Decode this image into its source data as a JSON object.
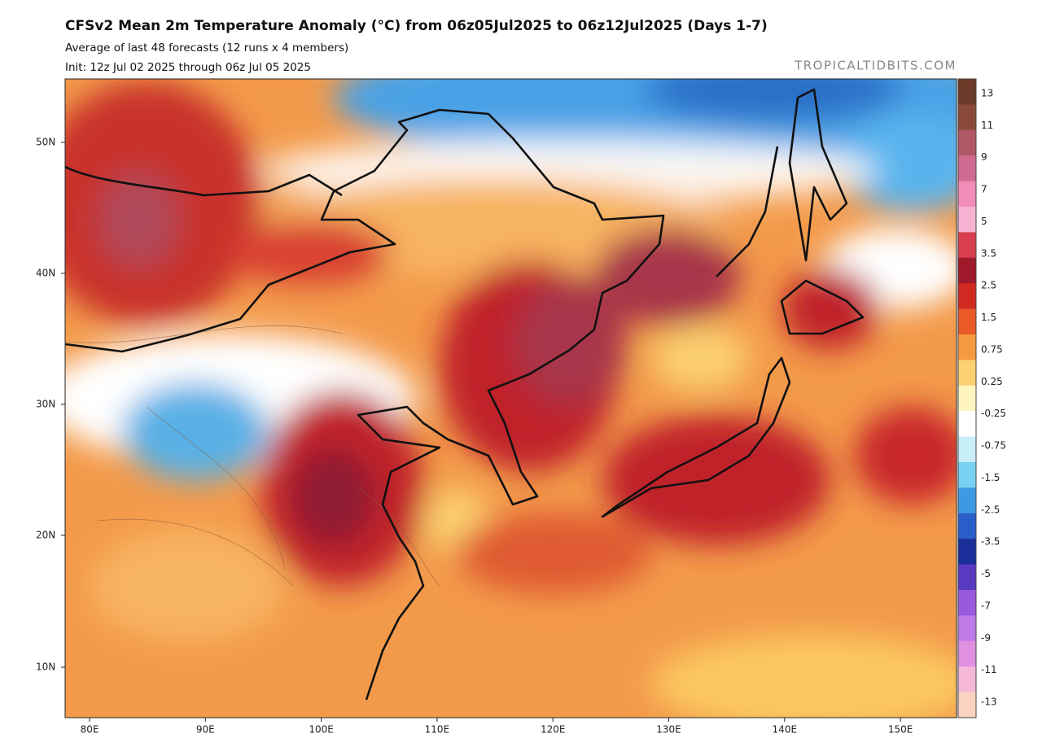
{
  "header": {
    "title": "CFSv2 Mean 2m Temperature Anomaly (°C) from 06z05Jul2025 to 06z12Jul2025 (Days 1-7)",
    "subtitle": "Average of last 48 forecasts (12 runs x 4 members)",
    "init": "Init: 12z Jul 02 2025 through 06z Jul 05 2025",
    "watermark": "TROPICALTIDBITS.COM"
  },
  "map": {
    "lat_labels": [
      "50N",
      "40N",
      "30N",
      "20N",
      "10N"
    ],
    "lon_labels": [
      "80E",
      "90E",
      "100E",
      "110E",
      "120E",
      "130E",
      "140E",
      "150E"
    ]
  },
  "colorbar": {
    "labels": [
      "13",
      "11",
      "9",
      "7",
      "5",
      "3.5",
      "2.5",
      "1.5",
      "0.75",
      "0.25",
      "-0.25",
      "-0.75",
      "-1.5",
      "-2.5",
      "-3.5",
      "-5",
      "-7",
      "-9",
      "-11",
      "-13"
    ]
  }
}
